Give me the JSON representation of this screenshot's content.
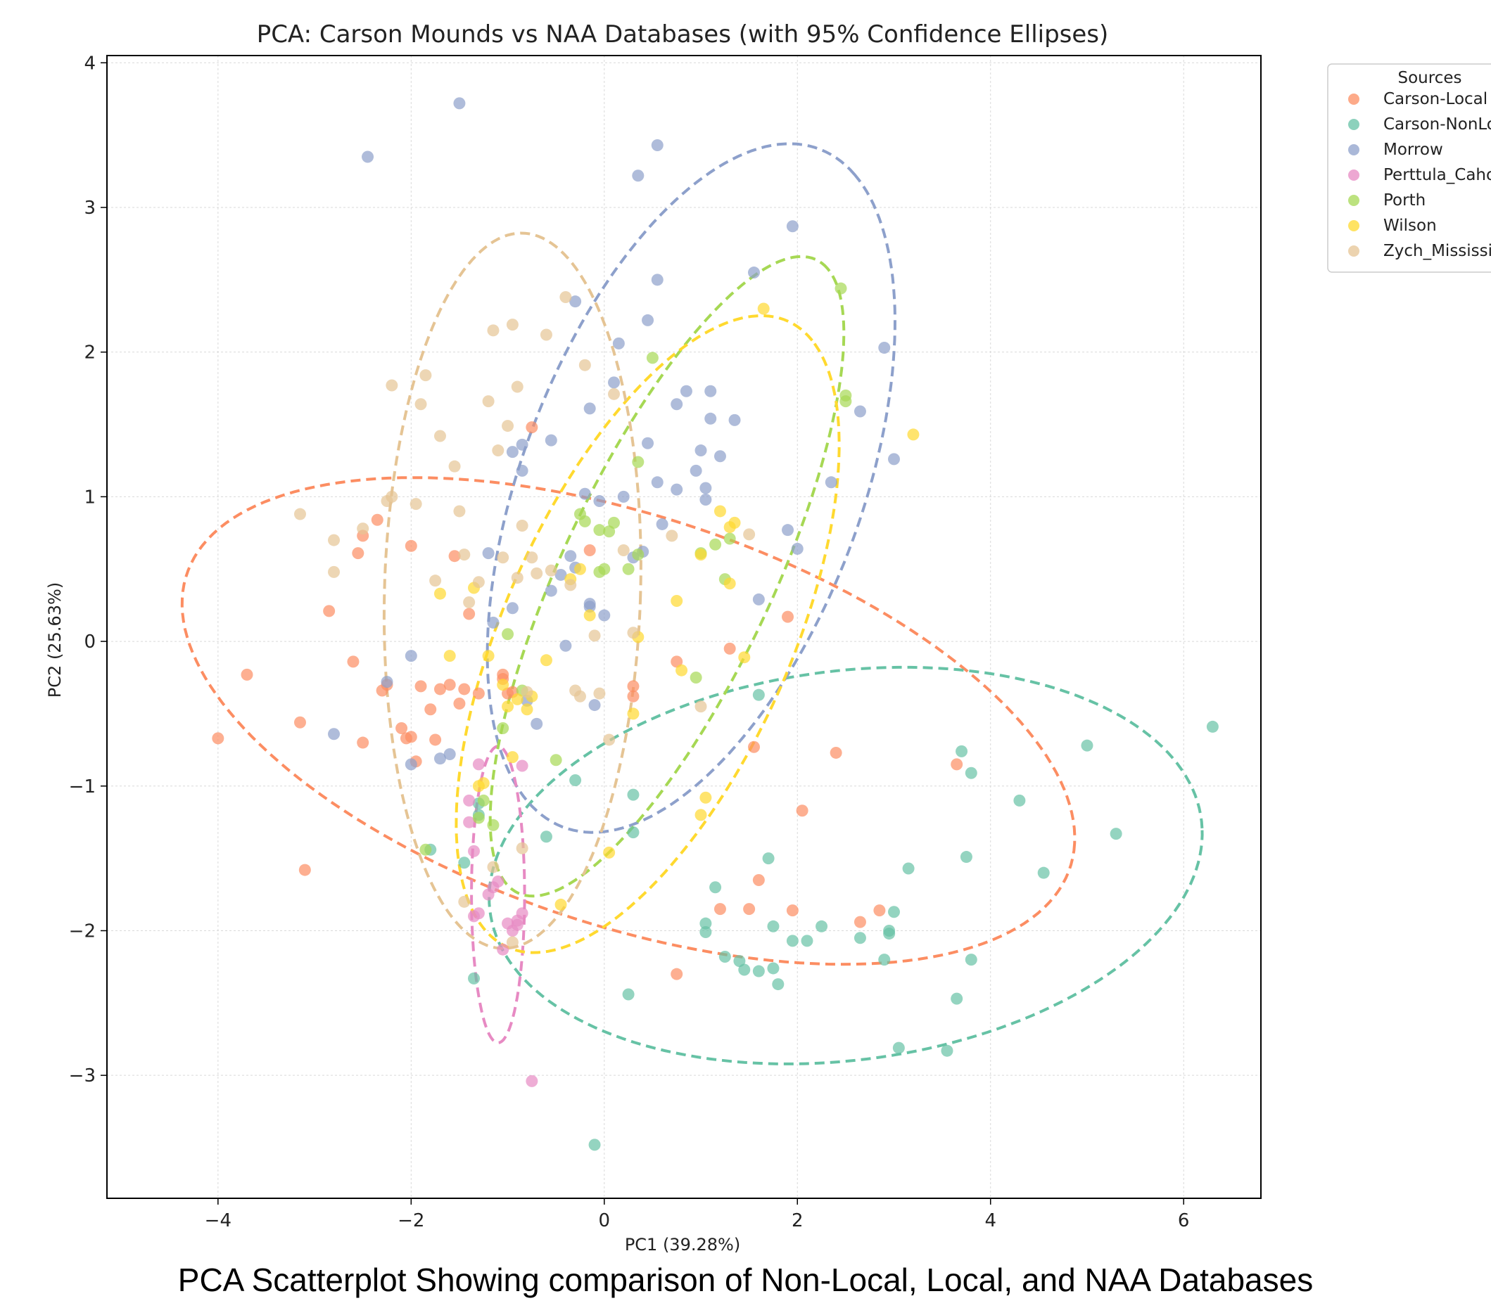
{
  "caption": "PCA Scatterplot Showing comparison of Non-Local, Local, and NAA Databases",
  "chart_data": {
    "type": "scatter",
    "title": "PCA: Carson Mounds vs NAA Databases (with 95% Confidence Ellipses)",
    "xlabel": "PC1 (39.28%)",
    "ylabel": "PC2 (25.63%)",
    "xlim": [
      -5.15,
      6.8
    ],
    "ylim": [
      -3.85,
      4.05
    ],
    "xticks": [
      -4,
      -2,
      0,
      2,
      4,
      6
    ],
    "xtick_labels": [
      "−4",
      "−2",
      "0",
      "2",
      "4",
      "6"
    ],
    "yticks": [
      -3,
      -2,
      -1,
      0,
      1,
      2,
      3,
      4
    ],
    "ytick_labels": [
      "−3",
      "−2",
      "−1",
      "0",
      "1",
      "2",
      "3",
      "4"
    ],
    "grid": true,
    "legend_title": "Sources",
    "legend_placement": "upper-right-outside",
    "series": [
      {
        "name": "Carson-Local",
        "color": "#fc8d62",
        "ellipse": {
          "cx": 0.25,
          "cy": -0.55,
          "width": 9.4,
          "height": 2.9,
          "angle_deg": -11
        },
        "x": [
          -4.0,
          -3.7,
          -3.15,
          -3.1,
          -2.85,
          -2.6,
          -2.55,
          -2.5,
          -2.5,
          -2.35,
          -2.3,
          -2.25,
          -2.1,
          -2.05,
          -2.0,
          -2.0,
          -1.95,
          -1.9,
          -1.8,
          -1.75,
          -1.7,
          -1.6,
          -1.55,
          -1.5,
          -1.45,
          -1.4,
          -1.3,
          -1.05,
          -1.05,
          -1.0,
          -0.95,
          -0.75,
          -0.15,
          0.3,
          0.3,
          0.75,
          0.75,
          1.3,
          1.2,
          1.5,
          1.55,
          1.6,
          1.95,
          2.05,
          2.4,
          2.65,
          2.85,
          3.65,
          1.9
        ],
        "y": [
          -0.67,
          -0.23,
          -0.56,
          -1.58,
          0.21,
          -0.14,
          0.61,
          0.73,
          -0.7,
          0.84,
          -0.34,
          -0.3,
          -0.6,
          -0.67,
          0.66,
          -0.66,
          -0.83,
          -0.31,
          -0.47,
          -0.68,
          -0.33,
          -0.3,
          0.59,
          -0.43,
          -0.33,
          0.19,
          -0.36,
          -0.23,
          -0.26,
          -0.36,
          -0.35,
          1.48,
          0.63,
          -0.31,
          -0.38,
          -0.14,
          -2.3,
          -0.05,
          -1.85,
          -1.85,
          -0.73,
          -1.65,
          -1.86,
          -1.17,
          -0.77,
          -1.94,
          -1.86,
          -0.85,
          0.17
        ]
      },
      {
        "name": "Carson-NonLocal",
        "color": "#66c2a5",
        "ellipse": {
          "cx": 2.5,
          "cy": -1.55,
          "width": 7.4,
          "height": 2.7,
          "angle_deg": 4
        },
        "x": [
          -1.3,
          -1.3,
          -1.35,
          -1.45,
          -0.6,
          -0.3,
          -0.1,
          0.25,
          0.3,
          0.3,
          1.05,
          1.05,
          1.15,
          1.25,
          1.4,
          1.45,
          1.6,
          1.7,
          1.75,
          1.75,
          1.8,
          1.95,
          2.1,
          2.25,
          2.65,
          2.9,
          2.95,
          2.95,
          3.0,
          3.05,
          3.15,
          3.55,
          3.65,
          3.7,
          3.75,
          3.8,
          3.8,
          4.3,
          4.55,
          5.0,
          5.3,
          6.3,
          -1.8,
          1.6
        ],
        "y": [
          -1.12,
          -1.2,
          -2.33,
          -1.53,
          -1.35,
          -0.96,
          -3.48,
          -2.44,
          -1.06,
          -1.32,
          -1.95,
          -2.01,
          -1.7,
          -2.18,
          -2.21,
          -2.27,
          -2.28,
          -1.5,
          -1.97,
          -2.26,
          -2.37,
          -2.07,
          -2.07,
          -1.97,
          -2.05,
          -2.2,
          -2.02,
          -2.0,
          -1.87,
          -2.81,
          -1.57,
          -2.83,
          -2.47,
          -0.76,
          -1.49,
          -0.91,
          -2.2,
          -1.1,
          -1.6,
          -0.72,
          -1.33,
          -0.59,
          -1.44,
          -0.37
        ]
      },
      {
        "name": "Morrow",
        "color": "#8da0cb",
        "ellipse": {
          "cx": 0.9,
          "cy": 1.06,
          "width": 5.5,
          "height": 3.2,
          "angle_deg": 52
        },
        "x": [
          -2.8,
          -2.45,
          -2.25,
          -2.0,
          -2.0,
          -1.5,
          -1.6,
          -1.2,
          -1.15,
          -0.95,
          -0.95,
          -0.85,
          -0.85,
          -0.8,
          -0.7,
          -0.55,
          -0.55,
          -0.45,
          -0.4,
          -0.35,
          -0.3,
          -0.3,
          -0.2,
          -0.15,
          -0.15,
          -0.1,
          -0.05,
          0.1,
          0.15,
          0.2,
          0.3,
          0.4,
          0.45,
          0.55,
          0.55,
          0.55,
          0.6,
          0.75,
          0.85,
          0.95,
          1.0,
          1.05,
          1.05,
          1.1,
          1.1,
          1.2,
          1.35,
          1.55,
          1.6,
          1.9,
          1.95,
          2.0,
          2.35,
          2.65,
          2.9,
          3.0,
          -0.15,
          0.0,
          -1.7,
          0.35,
          0.45,
          0.75
        ],
        "y": [
          -0.64,
          3.35,
          -0.28,
          -0.85,
          -0.1,
          3.72,
          -0.78,
          0.61,
          0.13,
          0.23,
          1.31,
          1.18,
          1.36,
          -0.41,
          -0.57,
          1.39,
          0.35,
          0.46,
          -0.03,
          0.59,
          0.51,
          2.35,
          1.02,
          0.24,
          1.61,
          -0.44,
          0.97,
          1.79,
          2.06,
          1.0,
          0.58,
          0.62,
          1.37,
          3.43,
          2.5,
          1.1,
          0.81,
          1.05,
          1.73,
          1.18,
          1.32,
          1.06,
          0.98,
          1.54,
          1.73,
          1.28,
          1.53,
          2.55,
          0.29,
          0.77,
          2.87,
          0.64,
          1.1,
          1.59,
          2.03,
          1.26,
          0.26,
          0.18,
          -0.81,
          3.22,
          2.22,
          1.64
        ]
      },
      {
        "name": "Perttula_Cahokia",
        "color": "#e78ac3",
        "ellipse": {
          "cx": -1.1,
          "cy": -1.75,
          "width": 0.55,
          "height": 2.05,
          "angle_deg": 0
        },
        "x": [
          -1.4,
          -1.35,
          -1.35,
          -1.3,
          -1.3,
          -1.2,
          -1.15,
          -1.1,
          -1.05,
          -1.0,
          -0.95,
          -0.9,
          -0.9,
          -0.85,
          -0.85,
          -0.75,
          -1.4
        ],
        "y": [
          -1.1,
          -1.45,
          -1.9,
          -1.88,
          -0.85,
          -1.75,
          -1.7,
          -1.66,
          -2.13,
          -1.95,
          -2.0,
          -1.96,
          -1.93,
          -1.88,
          -0.86,
          -3.04,
          -1.25
        ]
      },
      {
        "name": "Porth",
        "color": "#a6d854",
        "ellipse": {
          "cx": 0.65,
          "cy": 0.45,
          "width": 5.4,
          "height": 1.95,
          "angle_deg": 52
        },
        "x": [
          -1.85,
          -1.3,
          -1.25,
          -1.15,
          -1.05,
          -1.0,
          -0.85,
          -0.5,
          -0.25,
          -0.2,
          -0.05,
          -0.05,
          0.0,
          0.1,
          0.25,
          0.35,
          0.5,
          0.95,
          1.0,
          1.15,
          1.25,
          1.3,
          2.45,
          2.5,
          2.5,
          0.05,
          0.35
        ],
        "y": [
          -1.44,
          -1.22,
          -1.1,
          -1.27,
          -0.6,
          0.05,
          -0.34,
          -0.82,
          0.88,
          0.83,
          0.48,
          0.77,
          0.5,
          0.82,
          0.5,
          1.24,
          1.96,
          -0.25,
          0.61,
          0.67,
          0.43,
          0.71,
          2.44,
          1.66,
          1.7,
          0.76,
          0.6
        ]
      },
      {
        "name": "Wilson",
        "color": "#ffd92f",
        "ellipse": {
          "cx": 0.45,
          "cy": 0.05,
          "width": 5.3,
          "height": 2.65,
          "angle_deg": 50
        },
        "x": [
          -1.7,
          -1.6,
          -1.35,
          -1.3,
          -1.25,
          -1.2,
          -1.05,
          -1.0,
          -0.95,
          -0.9,
          -0.8,
          -0.75,
          -0.6,
          -0.45,
          -0.35,
          -0.25,
          -0.15,
          0.05,
          0.35,
          0.75,
          0.8,
          1.05,
          1.3,
          1.35,
          1.45,
          1.65,
          3.2,
          1.0,
          0.3,
          1.3,
          1.2,
          1.0
        ],
        "y": [
          0.33,
          -0.1,
          0.37,
          -1.0,
          -0.98,
          -0.1,
          -0.3,
          -0.45,
          -0.8,
          -0.4,
          -0.47,
          -0.38,
          -0.13,
          -1.82,
          0.43,
          0.5,
          0.18,
          -1.46,
          0.03,
          0.28,
          -0.2,
          -1.08,
          0.79,
          0.82,
          -0.11,
          2.3,
          1.43,
          -1.2,
          -0.5,
          0.4,
          0.9,
          0.6
        ],
        "note_x_extra": []
      },
      {
        "name": "Zych_Mississippian",
        "color": "#e5c494",
        "ellipse": {
          "cx": -0.95,
          "cy": 0.35,
          "width": 2.65,
          "height": 4.95,
          "angle_deg": -3
        },
        "x": [
          -3.15,
          -2.8,
          -2.8,
          -2.5,
          -2.25,
          -2.2,
          -2.2,
          -1.95,
          -1.9,
          -1.85,
          -1.75,
          -1.7,
          -1.55,
          -1.5,
          -1.45,
          -1.4,
          -1.3,
          -1.2,
          -1.15,
          -1.1,
          -1.05,
          -1.0,
          -0.95,
          -0.9,
          -0.9,
          -0.85,
          -0.8,
          -0.75,
          -0.7,
          -0.6,
          -0.55,
          -0.4,
          -0.35,
          -0.3,
          -0.25,
          -0.2,
          -0.1,
          -0.05,
          0.05,
          0.1,
          0.2,
          0.3,
          0.7,
          1.0,
          1.5,
          -1.15,
          -0.85,
          -1.45,
          -0.95
        ],
        "y": [
          0.88,
          0.7,
          0.48,
          0.78,
          0.97,
          1.77,
          1.0,
          0.95,
          1.64,
          1.84,
          0.42,
          1.42,
          1.21,
          0.9,
          0.6,
          0.27,
          0.41,
          1.66,
          2.15,
          1.32,
          0.58,
          1.49,
          2.19,
          0.44,
          1.76,
          0.8,
          -0.35,
          0.58,
          0.47,
          2.12,
          0.49,
          2.38,
          0.39,
          -0.34,
          -0.38,
          1.91,
          0.04,
          -0.36,
          -0.68,
          1.71,
          0.63,
          0.06,
          0.73,
          -0.45,
          0.74,
          -1.56,
          -1.43,
          -1.8,
          -2.08
        ]
      }
    ]
  }
}
